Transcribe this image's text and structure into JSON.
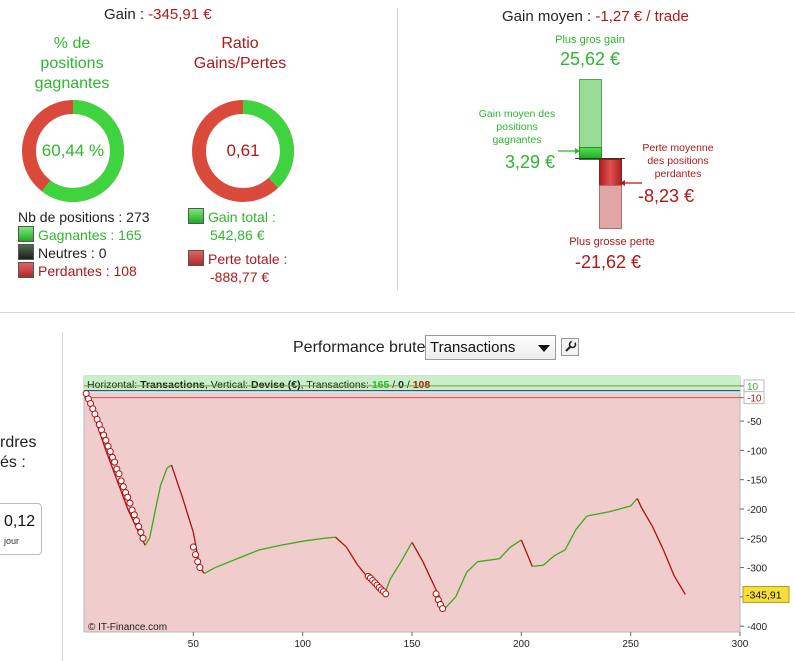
{
  "summary": {
    "gain_label": "Gain : ",
    "gain_value": "-345,91 €",
    "pct_title": "% de positions gagnantes",
    "pct_value": "60,44 %",
    "pct_fraction": 0.6044,
    "ratio_title": "Ratio Gains/Pertes",
    "ratio_value": "0,61",
    "ratio_green_fraction": 0.379,
    "nb_positions": "Nb de positions : 273",
    "gagnantes": "Gagnantes : 165",
    "neutres": "Neutres : 0",
    "perdantes": "Perdantes : 108",
    "gain_total_label": "Gain total :",
    "gain_total_value": "542,86 €",
    "perte_totale_label": "Perte totale :",
    "perte_totale_value": "-888,77 €"
  },
  "gain_moyen": {
    "label": "Gain moyen : ",
    "value": "-1,27 € / trade",
    "plus_gros_gain_label": "Plus gros gain",
    "plus_gros_gain_value": "25,62 €",
    "gain_moyen_pos_label": "Gain moyen des positions gagnantes",
    "gain_moyen_pos_value": "3,29 €",
    "perte_moyenne_label": "Perte moyenne des positions perdantes",
    "perte_moyenne_value": "-8,23 €",
    "plus_grosse_perte_label": "Plus grosse perte",
    "plus_grosse_perte_value": "-21,62 €"
  },
  "left_cut": {
    "line1": "rdres",
    "line2": "és :",
    "value": "0,12",
    "unit": "jour"
  },
  "performance": {
    "title": "Performance brute",
    "select_value": "Transactions",
    "select_options": [
      "Transactions"
    ],
    "info_prefix": "Horizontal: ",
    "info_h": "Transactions",
    "info_mid": ", Vertical: ",
    "info_v": "Devise (€)",
    "info_mid2": ", Transactions: ",
    "info_g": "165",
    "info_sep1": " / ",
    "info_n": "0",
    "info_sep2": " / ",
    "info_r": "108",
    "copyright": "© IT-Finance.com",
    "last_value": "-345,91"
  },
  "colors": {
    "green": "#2fb52f",
    "red": "#b01818",
    "chart_red_bg": "#f0cccc",
    "chart_green_bg": "#c8f0c8"
  },
  "chart_data": {
    "type": "line",
    "xlim": [
      0,
      300
    ],
    "ylim": [
      -410,
      15
    ],
    "x_ticks": [
      50,
      100,
      150,
      200,
      250,
      300
    ],
    "y_ticks": [
      10,
      -10,
      -50,
      -100,
      -150,
      -200,
      -250,
      -300,
      -350,
      -400
    ],
    "y_tick_labels": [
      "10",
      "-10",
      "-50",
      "-100",
      "-150",
      "-200",
      "-250",
      "-300",
      "-350",
      "-400"
    ],
    "grid": false,
    "x": [
      1,
      5,
      10,
      15,
      20,
      25,
      28,
      30,
      33,
      35,
      38,
      40,
      45,
      50,
      53,
      55,
      60,
      70,
      80,
      90,
      100,
      110,
      115,
      120,
      125,
      130,
      135,
      138,
      140,
      145,
      150,
      155,
      160,
      165,
      170,
      175,
      180,
      190,
      195,
      200,
      205,
      210,
      215,
      220,
      225,
      230,
      240,
      250,
      253,
      255,
      260,
      265,
      270,
      275
    ],
    "y": [
      -3,
      -45,
      -100,
      -150,
      -200,
      -240,
      -262,
      -250,
      -195,
      -160,
      -130,
      -125,
      -180,
      -240,
      -300,
      -310,
      -300,
      -285,
      -270,
      -262,
      -255,
      -250,
      -248,
      -265,
      -295,
      -318,
      -330,
      -340,
      -320,
      -290,
      -257,
      -290,
      -330,
      -370,
      -350,
      -308,
      -290,
      -285,
      -265,
      -253,
      -298,
      -296,
      -280,
      -270,
      -235,
      -212,
      -205,
      -195,
      -182,
      -198,
      -230,
      -270,
      -315,
      -345.91
    ],
    "markers_down_x": [
      1,
      2,
      3,
      4,
      5,
      6,
      7,
      8,
      9,
      10,
      11,
      12,
      13,
      14,
      15,
      16,
      17,
      18,
      19,
      20,
      21,
      22,
      23,
      24,
      25,
      26,
      27,
      50,
      51,
      52,
      53,
      130,
      131,
      132,
      133,
      134,
      135,
      136,
      137,
      138,
      161,
      162,
      163,
      164
    ],
    "markers_down_y": [
      -3,
      -12,
      -20,
      -29,
      -38,
      -47,
      -56,
      -65,
      -74,
      -83,
      -93,
      -102,
      -112,
      -120,
      -132,
      -140,
      -152,
      -162,
      -172,
      -180,
      -190,
      -202,
      -210,
      -220,
      -230,
      -240,
      -250,
      -265,
      -278,
      -290,
      -300,
      -315,
      -318,
      -322,
      -326,
      -330,
      -334,
      -338,
      -341,
      -345,
      -345,
      -355,
      -363,
      -370
    ]
  }
}
